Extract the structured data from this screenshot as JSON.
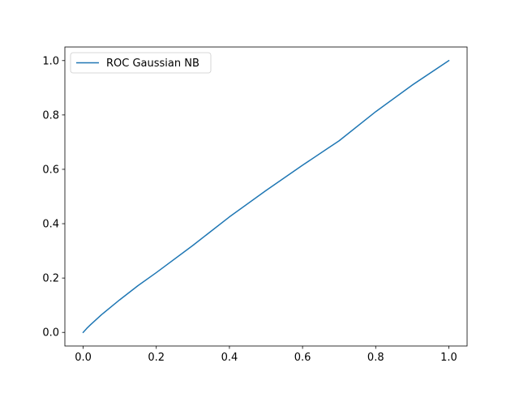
{
  "chart_data": {
    "type": "line",
    "title": "",
    "xlabel": "",
    "ylabel": "",
    "xlim": [
      -0.05,
      1.05
    ],
    "ylim": [
      -0.05,
      1.05
    ],
    "x_ticks": [
      0.0,
      0.2,
      0.4,
      0.6,
      0.8,
      1.0
    ],
    "y_ticks": [
      0.0,
      0.2,
      0.4,
      0.6,
      0.8,
      1.0
    ],
    "x_tick_labels": [
      "0.0",
      "0.2",
      "0.4",
      "0.6",
      "0.8",
      "1.0"
    ],
    "y_tick_labels": [
      "0.0",
      "0.2",
      "0.4",
      "0.6",
      "0.8",
      "1.0"
    ],
    "grid": false,
    "legend": {
      "placement": "top-left"
    },
    "series": [
      {
        "name": "ROC Gaussian NB",
        "color": "#1f77b4",
        "x": [
          0.0,
          0.01,
          0.02,
          0.05,
          0.1,
          0.15,
          0.2,
          0.3,
          0.4,
          0.5,
          0.6,
          0.67,
          0.7,
          0.8,
          0.9,
          1.0
        ],
        "y": [
          0.0,
          0.015,
          0.028,
          0.065,
          0.12,
          0.172,
          0.22,
          0.32,
          0.425,
          0.522,
          0.615,
          0.678,
          0.705,
          0.812,
          0.91,
          1.0
        ]
      }
    ]
  }
}
